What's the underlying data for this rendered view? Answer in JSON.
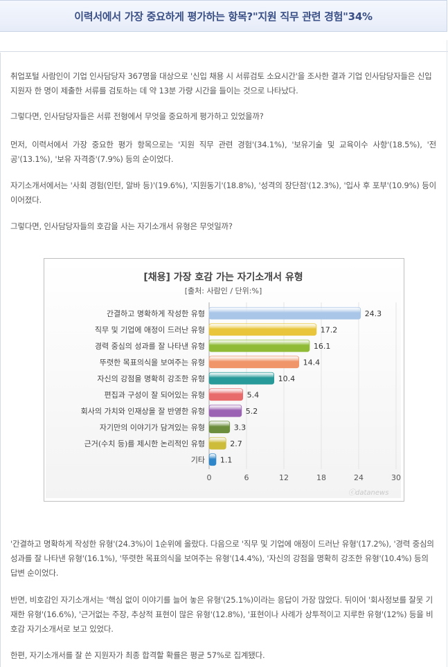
{
  "title": "이력서에서 가장 중요하게 평가하는 항목?\"지원 직무 관련 경험\"34%",
  "paragraphs": {
    "p1": "취업포털 사람인이 기업 인사담당자 367명을 대상으로 '신입 채용 시 서류검토 소요시간'을 조사한 결과 기업 인사담당자들은 신입 지원자 한 명이 제출한 서류를 검토하는 데 약 13분 가량 시간을 들이는 것으로 나타났다.",
    "p2": "그렇다면, 인사담당자들은 서류 전형에서 무엇을 중요하게 평가하고 있었을까?",
    "p3": "먼저, 이력서에서 가장 중요한 평가 항목으로는 '지원 직무 관련 경험'(34.1%), '보유기술 및 교육이수 사항'(18.5%), '전공'(13.1%), '보유 자격증'(7.9%) 등의 순이었다.",
    "p4": "자기소개서에서는 '사회 경험(인턴, 알바 등)'(19.6%), '지원동기'(18.8%), '성격의 장단점'(12.3%), '입사 후 포부'(10.9%) 등이 이어졌다.",
    "p5": "그렇다면, 인사담당자들의 호감을 사는 자기소개서 유형은 무엇일까?",
    "p6": "'간결하고 명확하게 작성한 유형'(24.3%)이 1순위에 올랐다. 다음으로 '직무 및 기업에 애정이 드러난 유형'(17.2%), '경력 중심의 성과를 잘 나타낸 유형'(16.1%), '뚜렷한 목표의식을 보여주는 유형'(14.4%), '자신의 강점을 명확히 강조한 유형'(10.4%) 등의 답변 순이었다.",
    "p7": "반면, 비호감인 자기소개서는 '핵심 없이 이야기를 늘어 놓은 유형'(25.1%)이라는 응답이 가장 많았다. 뒤이어 '회사정보를 잘못 기재한 유형'(16.6%), '근거없는 주장, 추상적 표현이 많은 유형'(12.8%), '표현이나 사례가 상투적이고 지루한 유형'(12%) 등을 비호감 자기소개서로 보고 있었다.",
    "p8": "한편, 자기소개서를 잘 쓴 지원자가 최종 합격할 확률은 평균 57%로 집계됐다."
  },
  "watermark": "ⓒdatanews",
  "chart_data": {
    "type": "bar",
    "orientation": "horizontal",
    "title": "[채용] 가장 호감 가는 자기소개서 유형",
    "subtitle": "[출처: 사람인 / 단위:%]",
    "categories": [
      "간결하고 명확하게 작성한 유형",
      "직무 및 기업에 애정이 드러난 유형",
      "경력 중심의 성과를 잘 나타낸 유형",
      "뚜렷한 목표의식을 보여주는 유형",
      "자신의 강점을 명확히 강조한 유형",
      "편집과 구성이 잘 되어있는 유형",
      "회사의 가치와 인재상을 잘 반영한 유형",
      "자기만의 이야기가 담겨있는 유형",
      "근거(수치 등)를 제시한 논리적인 유형",
      "기타"
    ],
    "values": [
      24.3,
      17.2,
      16.1,
      14.4,
      10.4,
      5.4,
      5.2,
      3.3,
      2.7,
      1.1
    ],
    "value_labels": [
      "24.3",
      "17.2",
      "16.1",
      "14.4",
      "10.4",
      "5.4",
      "5.2",
      "3.3",
      "2.7",
      "1.1"
    ],
    "colors": [
      "#a9c6e8",
      "#e8c53a",
      "#8fbb37",
      "#f0956a",
      "#279a99",
      "#e86a6a",
      "#9b62b4",
      "#6c8e3c",
      "#cdbb3a",
      "#2f86c8"
    ],
    "xlim": [
      0,
      30
    ],
    "xticks": [
      "0",
      "6",
      "12",
      "18",
      "24",
      "30"
    ],
    "grid": true,
    "legend": "none"
  }
}
